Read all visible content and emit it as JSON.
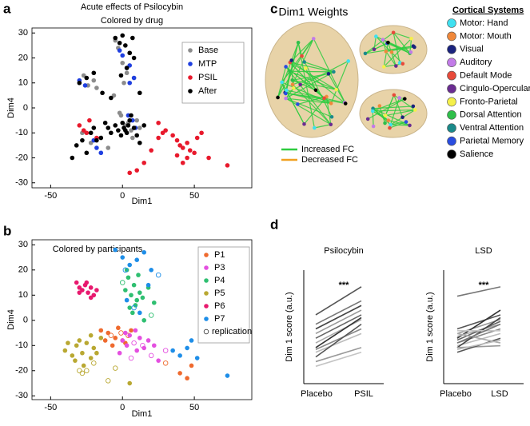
{
  "panel_labels": [
    "a",
    "b",
    "c",
    "d"
  ],
  "chart_data": [
    {
      "type": "scatter",
      "title": "Acute effects of Psilocybin",
      "subtitle": "Colored by drug",
      "xlabel": "Dim1",
      "ylabel": "Dim4",
      "xlim": [
        -63,
        90
      ],
      "ylim": [
        -32,
        32
      ],
      "xticks": [
        -50,
        0,
        50
      ],
      "yticks": [
        -30,
        -20,
        -10,
        0,
        10,
        20,
        30
      ],
      "series": [
        {
          "name": "Base",
          "color": "#8c8c8c",
          "x": [
            -27,
            -24,
            -20,
            -18,
            -15,
            -5,
            -3,
            0,
            3,
            5,
            8,
            -1,
            2,
            6,
            10,
            -28,
            -22,
            -2,
            4,
            7,
            12,
            -6,
            1,
            -10
          ],
          "values": [
            13,
            9,
            11,
            8,
            -12,
            27,
            24,
            18,
            14,
            22,
            12,
            -3,
            -7,
            -9,
            -5,
            -10,
            -14,
            -2,
            -6,
            -12,
            -8,
            5,
            10,
            -16
          ]
        },
        {
          "name": "MTP",
          "color": "#1f3fe0",
          "x": [
            -2,
            0,
            3,
            5,
            8,
            -30,
            -26,
            -20,
            -18,
            4,
            7,
            9,
            -15,
            5
          ],
          "values": [
            23,
            21,
            16,
            10,
            12,
            11,
            9,
            -13,
            -16,
            -3,
            -5,
            -8,
            -18,
            17
          ]
        },
        {
          "name": "PSIL",
          "color": "#e8192c",
          "x": [
            -30,
            -27,
            -23,
            25,
            30,
            35,
            38,
            40,
            42,
            45,
            47,
            50,
            52,
            55,
            60,
            73,
            38,
            42,
            45,
            5,
            10,
            15,
            20,
            25,
            28,
            -25,
            -18
          ],
          "values": [
            -7,
            -9,
            -5,
            -6,
            -9,
            -11,
            -13,
            -15,
            -16,
            -14,
            -17,
            -18,
            -12,
            -10,
            -20,
            -23,
            -19,
            -22,
            -20,
            -26,
            -25,
            -22,
            -17,
            -12,
            -10,
            -10,
            -12
          ]
        },
        {
          "name": "After",
          "color": "#000000",
          "x": [
            -35,
            -32,
            -28,
            -25,
            -22,
            -20,
            -18,
            -15,
            -12,
            -10,
            -8,
            -5,
            -3,
            -1,
            0,
            1,
            2,
            3,
            4,
            5,
            6,
            8,
            10,
            12,
            15,
            -5,
            -2,
            0,
            2,
            5,
            7,
            -8,
            -25,
            -30,
            -20,
            -14,
            -1,
            3,
            8,
            12
          ],
          "values": [
            -20,
            -15,
            -13,
            -18,
            -10,
            -8,
            -13,
            -12,
            -6,
            -8,
            -10,
            -7,
            -9,
            -11,
            -6,
            -8,
            -9,
            -10,
            -7,
            -5,
            -3,
            -8,
            -11,
            -14,
            -7,
            28,
            26,
            29,
            25,
            22,
            28,
            4,
            12,
            10,
            14,
            6,
            13,
            16,
            20,
            6
          ]
        }
      ]
    },
    {
      "type": "scatter",
      "title": "Colored by participants",
      "xlabel": "Dim1",
      "ylabel": "Dim4",
      "replication_label": "replication",
      "xlim": [
        -63,
        90
      ],
      "ylim": [
        -31.5,
        32
      ],
      "xticks": [
        -50,
        0,
        50
      ],
      "yticks": [
        -30,
        -20,
        -10,
        0,
        10,
        20,
        30
      ],
      "series": [
        {
          "name": "P1",
          "color": "#ef6a2e",
          "x": [
            -15,
            -10,
            -8,
            -5,
            -3,
            -1,
            0,
            2,
            4,
            6,
            -12,
            -7,
            30,
            40,
            45,
            48
          ],
          "values": [
            -4,
            -5,
            -6,
            -7,
            -3,
            -5,
            -8,
            -9,
            -6,
            -4,
            -8,
            -10,
            -17,
            -21,
            -23,
            -18
          ],
          "open": [
            false,
            false,
            true,
            false,
            false,
            true,
            false,
            false,
            true,
            false,
            false,
            false,
            true,
            false,
            false,
            false
          ]
        },
        {
          "name": "P3",
          "color": "#e44fe0",
          "x": [
            0,
            3,
            5,
            8,
            10,
            12,
            14,
            -2,
            6,
            9,
            15,
            20,
            25,
            30,
            18,
            22,
            2
          ],
          "values": [
            -8,
            -10,
            -6,
            -9,
            -12,
            -7,
            -10,
            -13,
            -15,
            -4,
            -11,
            -14,
            -16,
            -12,
            -8,
            -10,
            -5
          ],
          "open": [
            false,
            false,
            false,
            true,
            false,
            false,
            true,
            false,
            true,
            false,
            false,
            true,
            false,
            true,
            false,
            false,
            false
          ]
        },
        {
          "name": "P4",
          "color": "#2fbf71",
          "x": [
            0,
            2,
            4,
            6,
            8,
            10,
            12,
            5,
            7,
            9,
            11,
            3,
            14,
            18,
            20,
            22,
            15
          ],
          "values": [
            15,
            12,
            17,
            10,
            14,
            8,
            11,
            5,
            3,
            6,
            18,
            20,
            9,
            13,
            2,
            7,
            0
          ],
          "open": [
            true,
            false,
            false,
            false,
            false,
            false,
            false,
            false,
            false,
            false,
            false,
            false,
            false,
            false,
            true,
            false,
            false
          ]
        },
        {
          "name": "P5",
          "color": "#b9a832",
          "x": [
            -40,
            -35,
            -32,
            -30,
            -28,
            -25,
            -22,
            -20,
            -18,
            -15,
            -33,
            -27,
            -22,
            -38,
            -30,
            -25,
            -20,
            -28,
            -10,
            5,
            -5
          ],
          "values": [
            -12,
            -14,
            -10,
            -8,
            -13,
            -9,
            -15,
            -11,
            -13,
            -7,
            -16,
            -18,
            -6,
            -9,
            -20,
            -20,
            -17,
            -21,
            -24,
            -25,
            -19
          ],
          "open": [
            false,
            false,
            false,
            false,
            false,
            false,
            false,
            false,
            false,
            false,
            false,
            false,
            false,
            false,
            true,
            true,
            true,
            true,
            true,
            false,
            true
          ]
        },
        {
          "name": "P6",
          "color": "#e8196e",
          "x": [
            -32,
            -30,
            -28,
            -26,
            -24,
            -22,
            -20,
            -30,
            -25,
            -22,
            -18
          ],
          "values": [
            15,
            13,
            12,
            14,
            11,
            13,
            10,
            11,
            15,
            9,
            12
          ],
          "open": [
            false,
            false,
            false,
            false,
            false,
            false,
            false,
            false,
            false,
            false,
            false
          ]
        },
        {
          "name": "P7",
          "color": "#1e8ee8",
          "x": [
            -5,
            0,
            5,
            10,
            15,
            20,
            25,
            3,
            8,
            12,
            18,
            35,
            40,
            45,
            48,
            52,
            73,
            2
          ],
          "values": [
            28,
            25,
            22,
            24,
            27,
            20,
            18,
            8,
            5,
            3,
            14,
            -12,
            -14,
            -11,
            -8,
            -15,
            -22,
            20
          ],
          "open": [
            false,
            false,
            false,
            false,
            false,
            false,
            true,
            false,
            true,
            false,
            false,
            false,
            false,
            false,
            false,
            false,
            false,
            true
          ]
        }
      ]
    },
    {
      "type": "slope",
      "title": "Psilocybin",
      "annotation": "***",
      "ylabel": "Dim 1 score (a.u.)",
      "categories": [
        "Placebo",
        "PSIL"
      ],
      "ylim": [
        0,
        10
      ],
      "series": [
        {
          "color": "#555555",
          "values": [
            6.5,
            9.5
          ]
        },
        {
          "color": "#777777",
          "values": [
            5.5,
            8
          ]
        },
        {
          "color": "#444444",
          "values": [
            5,
            7.5
          ]
        },
        {
          "color": "#999999",
          "values": [
            4.5,
            7
          ]
        },
        {
          "color": "#666666",
          "values": [
            4,
            6.5
          ]
        },
        {
          "color": "#aaaaaa",
          "values": [
            3.5,
            6
          ]
        },
        {
          "color": "#333333",
          "values": [
            3,
            6.2
          ]
        },
        {
          "color": "#888888",
          "values": [
            2.8,
            5
          ]
        },
        {
          "color": "#bbbbbb",
          "values": [
            2.5,
            4.5
          ]
        },
        {
          "color": "#555555",
          "values": [
            2,
            5.5
          ]
        },
        {
          "color": "#999999",
          "values": [
            1.5,
            3
          ]
        },
        {
          "color": "#c4c4c4",
          "values": [
            1,
            2.5
          ]
        }
      ]
    },
    {
      "type": "slope",
      "title": "LSD",
      "annotation": "***",
      "ylabel": "Dim 1 score (a.u.)",
      "categories": [
        "Placebo",
        "LSD"
      ],
      "ylim": [
        0,
        10
      ],
      "series": [
        {
          "color": "#777777",
          "values": [
            8.5,
            9.5
          ]
        },
        {
          "color": "#555555",
          "values": [
            5,
            6.5
          ]
        },
        {
          "color": "#999999",
          "values": [
            4.5,
            6
          ]
        },
        {
          "color": "#333333",
          "values": [
            4,
            7
          ]
        },
        {
          "color": "#aaaaaa",
          "values": [
            4.2,
            5.5
          ]
        },
        {
          "color": "#666666",
          "values": [
            3.8,
            5.8
          ]
        },
        {
          "color": "#888888",
          "values": [
            3.5,
            5
          ]
        },
        {
          "color": "#bbbbbb",
          "values": [
            3.2,
            4.5
          ]
        },
        {
          "color": "#444444",
          "values": [
            3,
            6.2
          ]
        },
        {
          "color": "#c4c4c4",
          "values": [
            4.8,
            4.8
          ]
        },
        {
          "color": "#999999",
          "values": [
            3,
            3.2
          ]
        },
        {
          "color": "#555555",
          "values": [
            2.5,
            4
          ]
        },
        {
          "color": "#aaaaaa",
          "values": [
            4.5,
            3.5
          ]
        },
        {
          "color": "#777777",
          "values": [
            3.5,
            5.5
          ]
        },
        {
          "color": "#bbbbbb",
          "values": [
            2.8,
            3.8
          ]
        }
      ]
    }
  ],
  "panel_c": {
    "title": "Dim1 Weights",
    "fc_legend": [
      {
        "label": "Increased FC",
        "color": "#2ecc40"
      },
      {
        "label": "Decreased FC",
        "color": "#f0a020"
      }
    ],
    "systems_title": "Cortical Systems",
    "systems": [
      {
        "label": "Motor: Hand",
        "color": "#3fe0f0"
      },
      {
        "label": "Motor: Mouth",
        "color": "#f0883a"
      },
      {
        "label": "Visual",
        "color": "#1a237e"
      },
      {
        "label": "Auditory",
        "color": "#c27be8"
      },
      {
        "label": "Default Mode",
        "color": "#e84a3a"
      },
      {
        "label": "Cingulo-Opercular",
        "color": "#6a2c91"
      },
      {
        "label": "Fronto-Parietal",
        "color": "#f5f04a"
      },
      {
        "label": "Dorsal Attention",
        "color": "#2fbf4a"
      },
      {
        "label": "Ventral Attention",
        "color": "#1a8a8a"
      },
      {
        "label": "Parietal Memory",
        "color": "#2a4de0"
      },
      {
        "label": "Salience",
        "color": "#000000"
      }
    ]
  }
}
